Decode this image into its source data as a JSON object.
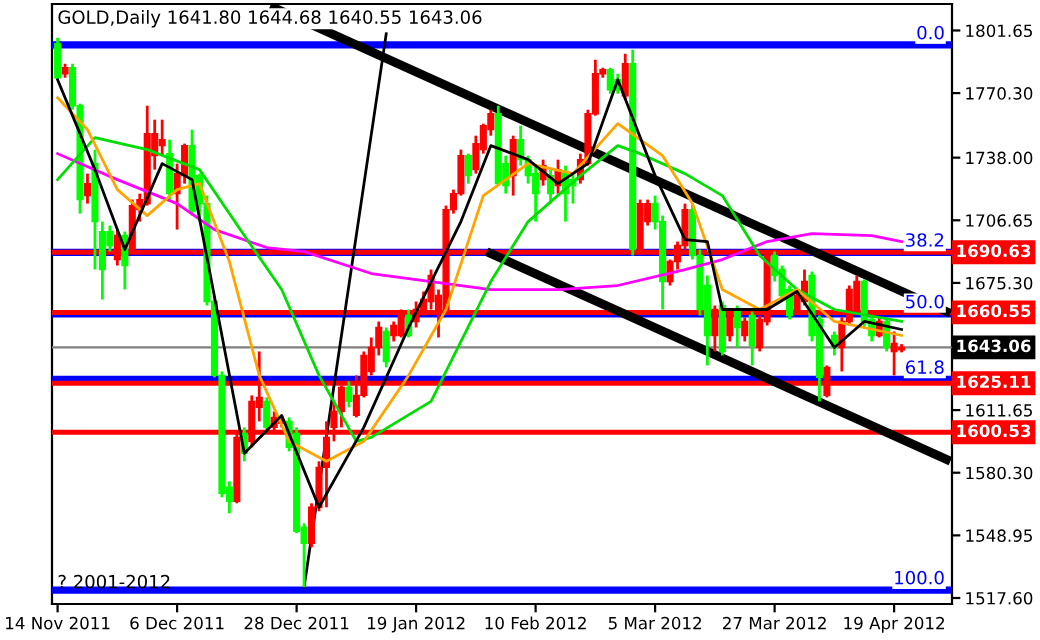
{
  "chart_data": {
    "type": "candlestick",
    "title": "GOLD,Daily 1641.80 1644.68 1640.55 1643.06",
    "annotations": [
      "? 2001-2012",
      {
        "text": "0.0",
        "y": 1794.4
      },
      {
        "text": "38.2",
        "y": 1690.6
      },
      {
        "text": "50.0",
        "y": 1659.8
      },
      {
        "text": "61.8",
        "y": 1627
      },
      {
        "text": "100.0",
        "y": 1521.6
      }
    ],
    "categories": [
      "14 Nov 2011",
      null,
      null,
      null,
      null,
      null,
      null,
      null,
      null,
      null,
      null,
      null,
      null,
      null,
      null,
      null,
      "6 Dec 2011",
      null,
      null,
      null,
      null,
      null,
      null,
      null,
      null,
      null,
      null,
      null,
      null,
      null,
      null,
      null,
      "28 Dec 2011",
      null,
      null,
      null,
      null,
      null,
      null,
      null,
      null,
      null,
      null,
      null,
      null,
      null,
      null,
      null,
      "19 Jan 2012",
      null,
      null,
      null,
      null,
      null,
      null,
      null,
      null,
      null,
      null,
      null,
      null,
      null,
      null,
      null,
      "10 Feb 2012",
      null,
      null,
      null,
      null,
      null,
      null,
      null,
      null,
      null,
      null,
      null,
      null,
      null,
      null,
      null,
      "5 Mar 2012",
      null,
      null,
      null,
      null,
      null,
      null,
      null,
      null,
      null,
      null,
      null,
      null,
      null,
      null,
      null,
      "27 Mar 2012",
      null,
      null,
      null,
      null,
      null,
      null,
      null,
      null,
      null,
      null,
      null,
      null,
      null,
      null,
      null,
      "19 Apr 2012",
      null,
      null,
      null,
      null,
      null,
      null,
      null
    ],
    "ohlc": [
      [
        1795,
        1798,
        1777,
        1778
      ],
      [
        1780,
        1785,
        1778,
        1783
      ],
      [
        1783,
        1785,
        1762,
        1764
      ],
      [
        1764,
        1765,
        1710,
        1717
      ],
      [
        1719,
        1730,
        1715,
        1725
      ],
      [
        1735,
        1742,
        1682,
        1706
      ],
      [
        1701,
        1706,
        1667,
        1682
      ],
      [
        1701,
        1704,
        1691,
        1694
      ],
      [
        1687,
        1702,
        1684,
        1699
      ],
      [
        1699,
        1701,
        1672,
        1684
      ],
      [
        1692,
        1717,
        1691,
        1714
      ],
      [
        1712,
        1720,
        1706,
        1717
      ],
      [
        1715,
        1764,
        1714,
        1750
      ],
      [
        1739,
        1757,
        1732,
        1750
      ],
      [
        1744,
        1757,
        1739,
        1747
      ],
      [
        1740,
        1747,
        1717,
        1720
      ],
      [
        1720,
        1735,
        1702,
        1730
      ],
      [
        1729,
        1745,
        1725,
        1744
      ],
      [
        1744,
        1752,
        1709,
        1711
      ],
      [
        1729,
        1730,
        1706,
        1715
      ],
      [
        1715,
        1719,
        1664,
        1666
      ],
      [
        1666,
        1669,
        1628,
        1629
      ],
      [
        1629,
        1631,
        1568,
        1570
      ],
      [
        1573,
        1576,
        1560,
        1566
      ],
      [
        1566,
        1600,
        1565,
        1598
      ],
      [
        1600,
        1603,
        1586,
        1590
      ],
      [
        1596,
        1619,
        1593,
        1616
      ],
      [
        1613,
        1641,
        1606,
        1618
      ],
      [
        1616,
        1618,
        1601,
        1603
      ],
      [
        1603,
        1611,
        1601,
        1608
      ],
      [
        1605,
        1608,
        1603,
        1606
      ],
      [
        1606,
        1608,
        1591,
        1593
      ],
      [
        1600,
        1603,
        1550,
        1551
      ],
      [
        1553,
        1555,
        1523,
        1545
      ],
      [
        1545,
        1565,
        1543,
        1563
      ],
      [
        1563,
        1586,
        1561,
        1583
      ],
      [
        1583,
        1606,
        1563,
        1598
      ],
      [
        1603,
        1616,
        1596,
        1611
      ],
      [
        1611,
        1624,
        1603,
        1623
      ],
      [
        1623,
        1626,
        1613,
        1616
      ],
      [
        1609,
        1629,
        1608,
        1619
      ],
      [
        1619,
        1641,
        1618,
        1639
      ],
      [
        1631,
        1648,
        1629,
        1643
      ],
      [
        1643,
        1656,
        1639,
        1653
      ],
      [
        1651,
        1653,
        1633,
        1636
      ],
      [
        1649,
        1656,
        1646,
        1654
      ],
      [
        1649,
        1662,
        1648,
        1659
      ],
      [
        1659,
        1662,
        1648,
        1649
      ],
      [
        1656,
        1666,
        1653,
        1662
      ],
      [
        1662,
        1671,
        1659,
        1667
      ],
      [
        1666,
        1682,
        1662,
        1679
      ],
      [
        1662,
        1672,
        1648,
        1669
      ],
      [
        1662,
        1714,
        1661,
        1712
      ],
      [
        1712,
        1722,
        1710,
        1720
      ],
      [
        1720,
        1742,
        1719,
        1739
      ],
      [
        1739,
        1740,
        1725,
        1729
      ],
      [
        1732,
        1749,
        1730,
        1745
      ],
      [
        1742,
        1755,
        1740,
        1754
      ],
      [
        1752,
        1762,
        1749,
        1760
      ],
      [
        1760,
        1764,
        1724,
        1725
      ],
      [
        1735,
        1739,
        1720,
        1724
      ],
      [
        1729,
        1749,
        1719,
        1747
      ],
      [
        1747,
        1754,
        1734,
        1737
      ],
      [
        1737,
        1739,
        1725,
        1729
      ],
      [
        1730,
        1734,
        1706,
        1720
      ],
      [
        1727,
        1737,
        1724,
        1734
      ],
      [
        1729,
        1732,
        1715,
        1720
      ],
      [
        1724,
        1737,
        1720,
        1732
      ],
      [
        1730,
        1734,
        1706,
        1720
      ],
      [
        1727,
        1730,
        1715,
        1724
      ],
      [
        1727,
        1740,
        1725,
        1737
      ],
      [
        1735,
        1762,
        1734,
        1760
      ],
      [
        1760,
        1787,
        1759,
        1780
      ],
      [
        1780,
        1783,
        1778,
        1782
      ],
      [
        1782,
        1783,
        1770,
        1772
      ],
      [
        1777,
        1780,
        1770,
        1772
      ],
      [
        1769,
        1790,
        1767,
        1785
      ],
      [
        1785,
        1792,
        1689,
        1692
      ],
      [
        1692,
        1717,
        1691,
        1715
      ],
      [
        1706,
        1717,
        1704,
        1715
      ],
      [
        1715,
        1719,
        1702,
        1706
      ],
      [
        1706,
        1709,
        1662,
        1676
      ],
      [
        1676,
        1687,
        1674,
        1686
      ],
      [
        1686,
        1696,
        1682,
        1694
      ],
      [
        1694,
        1715,
        1692,
        1712
      ],
      [
        1712,
        1715,
        1687,
        1689
      ],
      [
        1689,
        1692,
        1659,
        1662
      ],
      [
        1674,
        1679,
        1634,
        1649
      ],
      [
        1649,
        1664,
        1641,
        1662
      ],
      [
        1664,
        1666,
        1639,
        1641
      ],
      [
        1649,
        1662,
        1646,
        1659
      ],
      [
        1662,
        1664,
        1643,
        1653
      ],
      [
        1649,
        1658,
        1646,
        1656
      ],
      [
        1659,
        1661,
        1634,
        1644
      ],
      [
        1643,
        1659,
        1641,
        1657
      ],
      [
        1656,
        1691,
        1654,
        1689
      ],
      [
        1689,
        1691,
        1676,
        1679
      ],
      [
        1682,
        1684,
        1667,
        1669
      ],
      [
        1672,
        1674,
        1657,
        1659
      ],
      [
        1662,
        1672,
        1661,
        1669
      ],
      [
        1666,
        1682,
        1664,
        1676
      ],
      [
        1679,
        1681,
        1646,
        1649
      ],
      [
        1657,
        1659,
        1616,
        1628
      ],
      [
        1619,
        1634,
        1618,
        1633
      ],
      [
        1649,
        1651,
        1639,
        1643
      ],
      [
        1643,
        1658,
        1631,
        1656
      ],
      [
        1656,
        1674,
        1654,
        1672
      ],
      [
        1662,
        1679,
        1661,
        1676
      ],
      [
        1676,
        1677,
        1653,
        1656
      ],
      [
        1657,
        1659,
        1646,
        1649
      ],
      [
        1649,
        1658,
        1648,
        1656
      ],
      [
        1656,
        1658,
        1641,
        1643
      ],
      [
        1641,
        1651,
        1629,
        1645
      ],
      [
        1641.8,
        1644.68,
        1640.55,
        1643.06
      ],
      null,
      null,
      null,
      null,
      null,
      null
    ],
    "colors": [
      "#00ff00",
      "#ff0000",
      "#00ff00",
      "#00ff00",
      "#ff0000",
      "#00ff00",
      "#00ff00",
      "#00ff00",
      "#ff0000",
      "#00ff00",
      "#ff0000",
      "#ff0000",
      "#ff0000",
      "#ff0000",
      "#ff0000",
      "#00ff00",
      "#ff0000",
      "#ff0000",
      "#00ff00",
      "#00ff00",
      "#00ff00",
      "#00ff00",
      "#00ff00",
      "#00ff00",
      "#ff0000",
      "#00ff00",
      "#ff0000",
      "#ff0000",
      "#00ff00",
      "#ff0000",
      "#ff0000",
      "#00ff00",
      "#00ff00",
      "#00ff00",
      "#ff0000",
      "#ff0000",
      "#ff0000",
      "#ff0000",
      "#ff0000",
      "#00ff00",
      "#ff0000",
      "#ff0000",
      "#ff0000",
      "#ff0000",
      "#00ff00",
      "#ff0000",
      "#ff0000",
      "#00ff00",
      "#ff0000",
      "#ff0000",
      "#ff0000",
      "#ff0000",
      "#ff0000",
      "#ff0000",
      "#ff0000",
      "#00ff00",
      "#ff0000",
      "#ff0000",
      "#ff0000",
      "#00ff00",
      "#00ff00",
      "#ff0000",
      "#00ff00",
      "#00ff00",
      "#00ff00",
      "#ff0000",
      "#00ff00",
      "#ff0000",
      "#00ff00",
      "#00ff00",
      "#ff0000",
      "#ff0000",
      "#ff0000",
      "#ff0000",
      "#00ff00",
      "#00ff00",
      "#ff0000",
      "#00ff00",
      "#ff0000",
      "#ff0000",
      "#00ff00",
      "#00ff00",
      "#ff0000",
      "#ff0000",
      "#ff0000",
      "#00ff00",
      "#00ff00",
      "#00ff00",
      "#ff0000",
      "#00ff00",
      "#ff0000",
      "#00ff00",
      "#ff0000",
      "#00ff00",
      "#ff0000",
      "#ff0000",
      "#00ff00",
      "#00ff00",
      "#00ff00",
      "#ff0000",
      "#ff0000",
      "#00ff00",
      "#00ff00",
      "#ff0000",
      "#00ff00",
      "#ff0000",
      "#ff0000",
      "#ff0000",
      "#00ff00",
      "#00ff00",
      "#ff0000",
      "#00ff00",
      "#ff0000",
      "#ff0000",
      null,
      null,
      null,
      null,
      null,
      null
    ],
    "series": [
      {
        "type": "line",
        "color": "#ff00ff",
        "values": [
          1740,
          null,
          null,
          null,
          null,
          null,
          null,
          null,
          1727,
          null,
          null,
          null,
          null,
          null,
          null,
          null,
          1715,
          null,
          null,
          null,
          null,
          1702,
          null,
          null,
          null,
          null,
          null,
          null,
          1693,
          null,
          null,
          null,
          null,
          1691,
          null,
          null,
          null,
          null,
          null,
          null,
          null,
          null,
          1680,
          null,
          null,
          null,
          null,
          null,
          null,
          null,
          1676,
          null,
          null,
          null,
          null,
          null,
          null,
          null,
          1672,
          null,
          null,
          null,
          null,
          null,
          null,
          null,
          null,
          1672,
          null,
          null,
          null,
          null,
          null,
          null,
          null,
          1674,
          null,
          null,
          null,
          null,
          null,
          null,
          null,
          null,
          1682,
          null,
          null,
          null,
          null,
          1687,
          null,
          null,
          null,
          null,
          null,
          1696,
          null,
          null,
          null,
          null,
          null,
          1700,
          null,
          null,
          null,
          null,
          null,
          null,
          null,
          1699,
          null,
          null,
          null,
          1696,
          null,
          null,
          null,
          null,
          null,
          null
        ]
      },
      {
        "type": "line",
        "color": "#00dd00",
        "values": [
          1727,
          null,
          null,
          null,
          null,
          1748,
          null,
          null,
          null,
          null,
          null,
          null,
          1742,
          null,
          null,
          null,
          null,
          null,
          null,
          1732,
          null,
          null,
          null,
          null,
          null,
          1699,
          null,
          null,
          null,
          null,
          1672,
          null,
          null,
          null,
          null,
          1629,
          null,
          null,
          null,
          null,
          1596,
          null,
          1598,
          null,
          null,
          null,
          null,
          null,
          null,
          null,
          1616,
          null,
          null,
          null,
          null,
          null,
          null,
          null,
          1676,
          null,
          null,
          null,
          null,
          1706,
          null,
          null,
          null,
          null,
          null,
          null,
          1729,
          null,
          null,
          null,
          null,
          1744,
          null,
          null,
          1740,
          null,
          null,
          null,
          null,
          null,
          1730,
          null,
          null,
          null,
          null,
          1719,
          null,
          null,
          null,
          null,
          1689,
          null,
          null,
          null,
          null,
          1672,
          null,
          null,
          null,
          null,
          1662,
          null,
          null,
          null,
          null,
          null,
          null,
          null,
          null,
          1656,
          null,
          null,
          null,
          null,
          null,
          null
        ]
      },
      {
        "type": "line",
        "color": "#ffa500",
        "values": [
          1768,
          null,
          null,
          null,
          1752,
          null,
          null,
          null,
          1722,
          null,
          null,
          null,
          1709,
          null,
          null,
          null,
          1722,
          null,
          null,
          1725,
          null,
          null,
          null,
          1686,
          null,
          null,
          null,
          1629,
          null,
          null,
          null,
          1596,
          null,
          null,
          null,
          null,
          1586,
          null,
          null,
          null,
          null,
          1596,
          null,
          null,
          null,
          null,
          null,
          1629,
          null,
          null,
          null,
          null,
          1662,
          null,
          null,
          null,
          null,
          1719,
          null,
          null,
          null,
          null,
          null,
          1735,
          null,
          null,
          null,
          null,
          null,
          1730,
          null,
          null,
          null,
          null,
          null,
          1755,
          null,
          null,
          null,
          null,
          null,
          1739,
          null,
          null,
          null,
          1715,
          null,
          null,
          null,
          1672,
          null,
          null,
          null,
          null,
          1662,
          null,
          null,
          null,
          null,
          1672,
          null,
          null,
          null,
          null,
          1656,
          null,
          null,
          null,
          null,
          null,
          null,
          null,
          null,
          1649,
          null,
          null,
          null,
          null,
          null,
          null
        ]
      },
      {
        "type": "line",
        "color": "#000000",
        "values": [
          1777,
          null,
          null,
          null,
          null,
          1732,
          null,
          null,
          null,
          1692,
          null,
          null,
          null,
          null,
          1735,
          null,
          null,
          null,
          1727,
          null,
          null,
          null,
          1649,
          null,
          null,
          1590,
          null,
          null,
          null,
          null,
          1609,
          null,
          null,
          null,
          null,
          1563,
          null,
          null,
          null,
          null,
          null,
          1603,
          null,
          null,
          null,
          null,
          null,
          1653,
          null,
          null,
          null,
          null,
          null,
          null,
          1706,
          null,
          null,
          null,
          1744,
          null,
          null,
          null,
          null,
          1737,
          null,
          null,
          null,
          1725,
          null,
          null,
          null,
          1735,
          null,
          null,
          null,
          1777,
          null,
          null,
          null,
          null,
          1729,
          null,
          null,
          null,
          1697,
          null,
          null,
          1696,
          null,
          1662,
          null,
          null,
          null,
          null,
          null,
          1662,
          null,
          null,
          null,
          1671,
          null,
          null,
          null,
          null,
          1643,
          null,
          null,
          null,
          1656,
          null,
          null,
          null,
          null,
          1652,
          null,
          null,
          null,
          null,
          null,
          null
        ]
      },
      {
        "type": "line",
        "color": "#000000",
        "values": [
          null,
          null,
          null,
          null,
          null,
          null,
          null,
          null,
          null,
          null,
          null,
          null,
          null,
          null,
          null,
          null,
          null,
          null,
          null,
          null,
          null,
          null,
          null,
          null,
          null,
          null,
          null,
          null,
          null,
          1813,
          null,
          null,
          null,
          null,
          null,
          null,
          null,
          null,
          null,
          null,
          null,
          null,
          null,
          null,
          null,
          null,
          null,
          null,
          null,
          null,
          null,
          null,
          null,
          null,
          null,
          null,
          null,
          null,
          null,
          null,
          null,
          null,
          null,
          null,
          null,
          null,
          null,
          null,
          null,
          null,
          null,
          null,
          null,
          null,
          null,
          null,
          null,
          null,
          null,
          null,
          null,
          null,
          null,
          null,
          null,
          null,
          null,
          null,
          null,
          null,
          null,
          null,
          null,
          null,
          null,
          null,
          null,
          null,
          null,
          null,
          null,
          null,
          null,
          null,
          null,
          null,
          null,
          null,
          null,
          null,
          null,
          null,
          null,
          null,
          null,
          null,
          null,
          null,
          null,
          1661
        ]
      },
      {
        "type": "line",
        "color": "#000000",
        "values": [
          null,
          null,
          null,
          null,
          null,
          null,
          null,
          null,
          null,
          null,
          null,
          null,
          null,
          null,
          null,
          null,
          null,
          null,
          null,
          null,
          null,
          null,
          null,
          null,
          null,
          null,
          null,
          null,
          null,
          null,
          null,
          null,
          null,
          null,
          null,
          null,
          null,
          null,
          null,
          null,
          null,
          null,
          null,
          null,
          null,
          null,
          null,
          null,
          null,
          null,
          null,
          null,
          null,
          null,
          null,
          null,
          null,
          null,
          1690,
          null,
          null,
          null,
          null,
          null,
          null,
          null,
          null,
          null,
          null,
          null,
          null,
          null,
          null,
          null,
          null,
          null,
          null,
          null,
          null,
          null,
          null,
          null,
          null,
          null,
          null,
          null,
          null,
          null,
          null,
          null,
          null,
          null,
          null,
          null,
          null,
          null,
          null,
          null,
          null,
          null,
          null,
          null,
          null,
          null,
          null,
          null,
          null,
          null,
          null,
          null,
          null,
          null,
          null,
          null,
          null,
          null,
          null,
          null,
          null,
          1587
        ]
      },
      {
        "type": "line",
        "color": "#000000",
        "values": [
          null,
          null,
          null,
          null,
          null,
          null,
          null,
          null,
          null,
          null,
          null,
          null,
          null,
          null,
          null,
          null,
          null,
          null,
          null,
          null,
          null,
          null,
          null,
          null,
          null,
          null,
          null,
          null,
          null,
          null,
          null,
          null,
          null,
          1523,
          null,
          null,
          null,
          null,
          null,
          null,
          null,
          null,
          null,
          null,
          1800,
          null,
          null,
          null,
          null,
          null,
          null,
          null,
          null,
          null,
          null,
          null,
          null,
          null,
          null,
          null,
          null,
          null,
          null,
          null,
          null,
          null,
          null,
          null,
          null,
          null,
          null,
          null,
          null,
          null,
          null,
          null,
          null,
          null,
          null,
          null,
          null,
          null,
          null,
          null,
          null,
          null,
          null,
          null,
          null,
          null,
          null,
          null,
          null,
          null,
          null,
          null,
          null,
          null,
          null,
          null,
          null,
          null,
          null,
          null,
          null,
          null,
          null,
          null,
          null,
          null,
          null,
          null,
          null,
          null,
          null,
          null,
          null,
          null,
          null,
          null
        ]
      }
    ],
    "ylim": [
      1514.6,
      1814.9
    ],
    "yticks": [
      {
        "value": 1801.65,
        "label": "1801.65"
      },
      {
        "value": 1770.3,
        "label": "1770.30"
      },
      {
        "value": 1738,
        "label": "1738.00"
      },
      {
        "value": 1706.65,
        "label": "1706.65"
      },
      {
        "value": 1675.3,
        "label": "1675.30"
      },
      {
        "value": 1611.65,
        "label": "1611.65"
      },
      {
        "value": 1580.3,
        "label": "1580.30"
      },
      {
        "value": 1548.95,
        "label": "1548.95"
      },
      {
        "value": 1517.6,
        "label": "1517.60"
      }
    ],
    "ref_lines": [
      {
        "axis": "y",
        "value": 1794.4,
        "color": "#0000ff"
      },
      {
        "axis": "y",
        "value": 1690.6,
        "color": "#0000ff"
      },
      {
        "axis": "y",
        "value": 1659.8,
        "color": "#0000ff"
      },
      {
        "axis": "y",
        "value": 1627,
        "color": "#0000ff"
      },
      {
        "axis": "y",
        "value": 1521.6,
        "color": "#0000ff"
      },
      {
        "axis": "y",
        "value": 1690.63,
        "label": "1690.63",
        "color": "#ff0000"
      },
      {
        "axis": "y",
        "value": 1660.55,
        "label": "1660.55",
        "color": "#ff0000"
      },
      {
        "axis": "y",
        "value": 1625.11,
        "label": "1625.11",
        "color": "#ff0000"
      },
      {
        "axis": "y",
        "value": 1600.53,
        "label": "1600.53",
        "color": "#ff0000"
      },
      {
        "axis": "y",
        "value": 1643.06,
        "label": "1643.06",
        "color": "#808080"
      }
    ]
  }
}
